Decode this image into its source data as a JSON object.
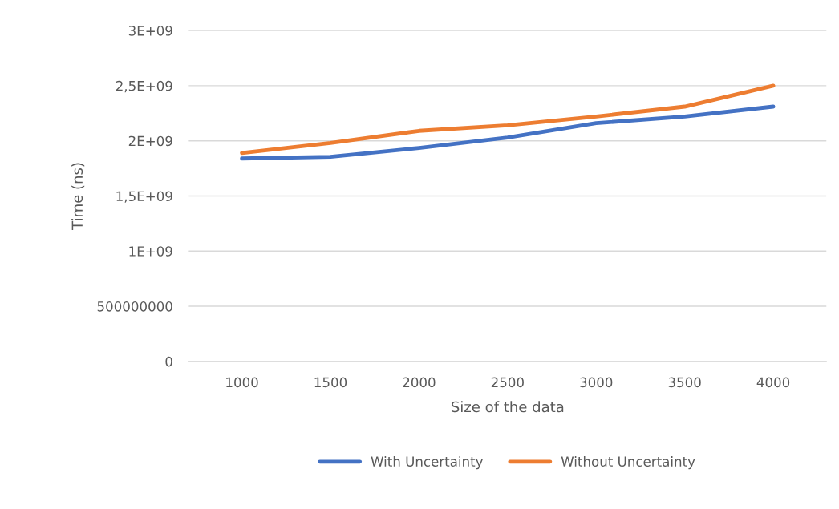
{
  "chart_data": {
    "type": "line",
    "xlabel": "Size of the data",
    "ylabel": "Time (ns)",
    "categories": [
      "1000",
      "1500",
      "2000",
      "2500",
      "3000",
      "3500",
      "4000"
    ],
    "series": [
      {
        "name": "With Uncertainty",
        "color": "#4472c4",
        "values": [
          1840000000,
          1855000000,
          1935000000,
          2030000000,
          2160000000,
          2220000000,
          2310000000
        ]
      },
      {
        "name": "Without Uncertainty",
        "color": "#ed7d31",
        "values": [
          1890000000,
          1980000000,
          2090000000,
          2140000000,
          2220000000,
          2310000000,
          2500000000
        ]
      }
    ],
    "ylim": [
      0,
      3000000000
    ],
    "yticks": [
      0,
      {
        "value": 500000000,
        "label": "500000000"
      },
      {
        "value": 1000000000,
        "label": "1E+09"
      },
      {
        "value": 1500000000,
        "label": "1,5E+09"
      },
      {
        "value": 2000000000,
        "label": "2E+09"
      },
      {
        "value": 2500000000,
        "label": "2,5E+09"
      },
      {
        "value": 3000000000,
        "label": "3E+09"
      }
    ],
    "grid": "y",
    "legend": "bottom",
    "marker": "none",
    "line_style": "solid"
  }
}
